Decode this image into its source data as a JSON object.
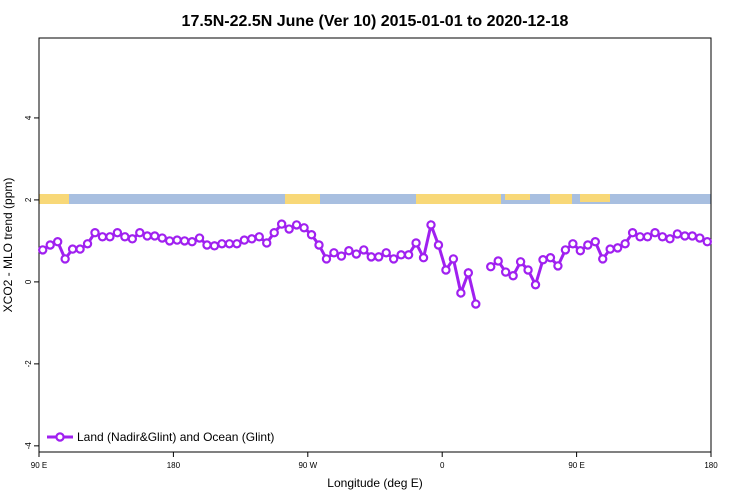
{
  "chart_data": {
    "type": "line",
    "title": "17.5N-22.5N June (Ver 10)   2015-01-01 to 2020-12-18",
    "x_label": "Longitude (deg E)",
    "y_label": "XCO2 - MLO trend (ppm)",
    "x": [
      92.5,
      97.5,
      102.5,
      107.5,
      112.5,
      117.5,
      122.5,
      127.5,
      132.5,
      137.5,
      142.5,
      147.5,
      152.5,
      157.5,
      162.5,
      167.5,
      172.5,
      177.5,
      182.5,
      187.5,
      192.5,
      197.5,
      202.5,
      207.5,
      212.5,
      217.5,
      222.5,
      227.5,
      232.5,
      237.5,
      242.5,
      247.5,
      252.5,
      257.5,
      262.5,
      267.5,
      272.5,
      277.5,
      282.5,
      287.5,
      292.5,
      297.5,
      302.5,
      307.5,
      312.5,
      317.5,
      322.5,
      327.5,
      332.5,
      337.5,
      342.5,
      347.5,
      352.5,
      357.5,
      362.5,
      367.5,
      372.5,
      377.5,
      382.5,
      387.5,
      392.5,
      397.5,
      402.5,
      407.5,
      412.5,
      417.5,
      422.5,
      427.5,
      432.5,
      437.5,
      442.5,
      447.5,
      452.5,
      457.5,
      462.5,
      467.5,
      472.5,
      477.5,
      482.5,
      487.5,
      492.5,
      497.5,
      502.5,
      507.5,
      512.5,
      517.5,
      522.5,
      527.5,
      532.5,
      537.5
    ],
    "series": [
      {
        "name": "Land (Nadir&Glint) and Ocean (Glint)",
        "color": "#a020f0",
        "values": [
          0.78,
          0.9,
          0.98,
          0.56,
          0.8,
          0.8,
          0.93,
          1.2,
          1.1,
          1.1,
          1.2,
          1.1,
          1.05,
          1.2,
          1.12,
          1.12,
          1.07,
          1.0,
          1.02,
          1.0,
          0.98,
          1.07,
          0.9,
          0.88,
          0.93,
          0.93,
          0.93,
          1.02,
          1.05,
          1.1,
          0.95,
          1.2,
          1.41,
          1.29,
          1.39,
          1.32,
          1.15,
          0.9,
          0.56,
          0.71,
          0.63,
          0.76,
          0.68,
          0.78,
          0.61,
          0.61,
          0.71,
          0.56,
          0.66,
          0.66,
          0.95,
          0.59,
          1.39,
          0.9,
          0.29,
          0.56,
          -0.27,
          0.22,
          -0.54,
          null,
          0.37,
          0.51,
          0.24,
          0.15,
          0.49,
          0.29,
          -0.07,
          0.54,
          0.59,
          0.39,
          0.78,
          0.93,
          0.76,
          0.9,
          0.98,
          0.56,
          0.8,
          0.83,
          0.93,
          1.2,
          1.1,
          1.1,
          1.2,
          1.1,
          1.05,
          1.17,
          1.12,
          1.12,
          1.07,
          0.98
        ]
      }
    ],
    "xlim": [
      90,
      540
    ],
    "xticks": [
      {
        "value": 90,
        "label": "90 E"
      },
      180,
      {
        "value": 270,
        "label": "90 W"
      },
      {
        "value": 360,
        "label": "0"
      },
      {
        "value": 450,
        "label": "90 E"
      },
      {
        "value": 540,
        "label": "180"
      }
    ],
    "ylim": [
      -4.15,
      5.95
    ],
    "yticks": [
      -4,
      -2,
      0,
      2,
      4
    ],
    "legend": "bottom-left"
  }
}
